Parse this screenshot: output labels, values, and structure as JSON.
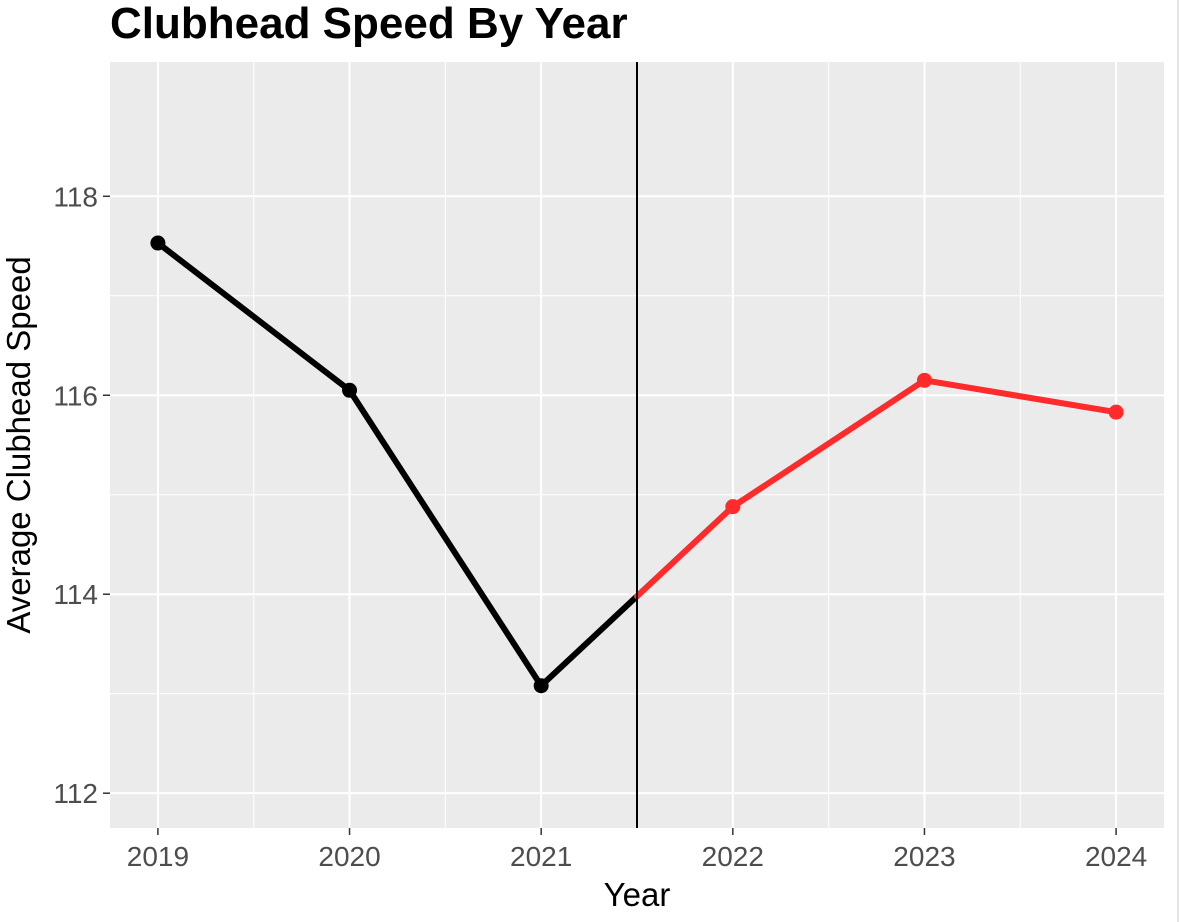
{
  "chart_data": {
    "type": "line",
    "title": "Clubhead Speed By Year",
    "xlabel": "Year",
    "ylabel": "Average Clubhead Speed",
    "x": [
      2019,
      2020,
      2021,
      2022,
      2023,
      2024
    ],
    "x_tick_labels": [
      "2019",
      "2020",
      "2021",
      "2022",
      "2023",
      "2024"
    ],
    "y_ticks": [
      112,
      114,
      116,
      118
    ],
    "y_tick_labels": [
      "112",
      "114",
      "116",
      "118"
    ],
    "xlim": [
      2018.75,
      2024.25
    ],
    "ylim": [
      111.65,
      119.35
    ],
    "grid": true,
    "background": "#EBEBEB",
    "vertical_line": {
      "x": 2021.5,
      "color": "#000000"
    },
    "series": [
      {
        "values": [
          117.53,
          116.05,
          113.08,
          114.88,
          116.15,
          115.83
        ],
        "colors": [
          "#000000",
          "#000000",
          "#000000",
          "#FF2A2A",
          "#FF2A2A",
          "#FF2A2A"
        ],
        "segment_split_x": 2021.5
      }
    ]
  }
}
